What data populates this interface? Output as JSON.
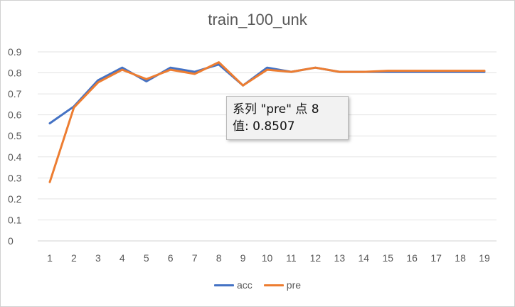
{
  "chart_data": {
    "type": "line",
    "title": "train_100_unk",
    "xlabel": "",
    "ylabel": "",
    "categories": [
      "1",
      "2",
      "3",
      "4",
      "5",
      "6",
      "7",
      "8",
      "9",
      "10",
      "11",
      "12",
      "13",
      "14",
      "15",
      "16",
      "17",
      "18",
      "19"
    ],
    "ylim": [
      0,
      0.9
    ],
    "yticks": [
      "0",
      "0.1",
      "0.2",
      "0.3",
      "0.4",
      "0.5",
      "0.6",
      "0.7",
      "0.8",
      "0.9"
    ],
    "ytick_values": [
      0,
      0.1,
      0.2,
      0.3,
      0.4,
      0.5,
      0.6,
      0.7,
      0.8,
      0.9
    ],
    "grid": true,
    "legend_position": "bottom",
    "series": [
      {
        "name": "acc",
        "color": "#4472C4",
        "values": [
          0.56,
          0.64,
          0.765,
          0.825,
          0.76,
          0.825,
          0.805,
          0.84,
          0.74,
          0.825,
          0.805,
          0.825,
          0.805,
          0.805,
          0.805,
          0.805,
          0.805,
          0.805,
          0.805
        ]
      },
      {
        "name": "pre",
        "color": "#ED7D31",
        "values": [
          0.28,
          0.635,
          0.755,
          0.815,
          0.77,
          0.815,
          0.795,
          0.8507,
          0.74,
          0.815,
          0.805,
          0.825,
          0.805,
          0.805,
          0.81,
          0.81,
          0.81,
          0.81,
          0.81
        ]
      }
    ],
    "tooltip": {
      "line1": "系列 \"pre\" 点 8",
      "line2": "值: 0.8507"
    }
  }
}
